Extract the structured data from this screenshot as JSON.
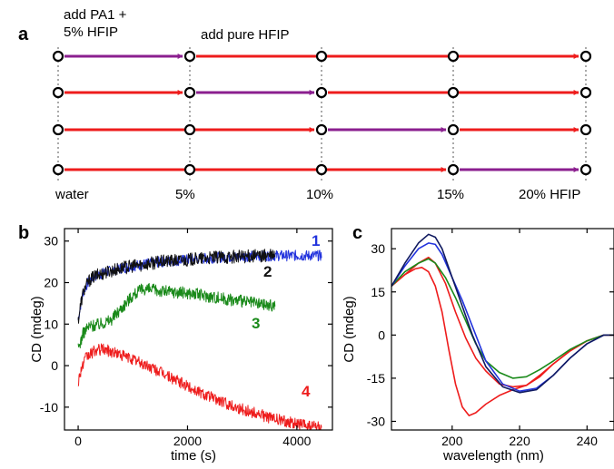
{
  "panels": {
    "a": "a",
    "b": "b",
    "c": "c"
  },
  "colors": {
    "red": "#ee1c1c",
    "purple": "#8b1f8f",
    "black": "#111111",
    "blue": "#2233dd",
    "green": "#1a8a1a",
    "navy": "#101a60"
  },
  "schematic": {
    "annotation_start": [
      "add PA1 +",
      "5% HFIP"
    ],
    "annotation_pure": "add pure HFIP",
    "stage_labels": [
      "water",
      "5%",
      "10%",
      "15%",
      "20% HFIP"
    ],
    "rows": [
      {
        "purple_segment": 0
      },
      {
        "purple_segment": 1
      },
      {
        "purple_segment": 2
      },
      {
        "purple_segment": 3
      }
    ]
  },
  "chart_data": [
    {
      "panel": "b",
      "type": "line",
      "xlabel": "time (s)",
      "ylabel": "CD (mdeg)",
      "xlim": [
        -250,
        4650
      ],
      "ylim": [
        -15.5,
        33
      ],
      "xticks": [
        0,
        2000,
        4000
      ],
      "yticks": [
        -10,
        0,
        10,
        20,
        30
      ],
      "series": [
        {
          "name": "1",
          "color": "#2233dd",
          "noise": 1.3,
          "x": [
            0,
            50,
            100,
            200,
            300,
            500,
            800,
            1000,
            1500,
            2000,
            2500,
            3000,
            3600,
            3800,
            4000,
            4300,
            4450
          ],
          "y": [
            11,
            15,
            18,
            20.5,
            21.5,
            22.5,
            23.5,
            24,
            25,
            25.5,
            26,
            26.3,
            26.5,
            26.5,
            26.5,
            26.5,
            26.5
          ]
        },
        {
          "name": "2",
          "color": "#111111",
          "noise": 1.6,
          "x": [
            0,
            50,
            100,
            200,
            300,
            500,
            800,
            1000,
            1500,
            2000,
            2500,
            3000,
            3600
          ],
          "y": [
            11,
            15,
            18,
            20.5,
            21.5,
            22.5,
            23.5,
            24,
            25,
            25.5,
            26,
            26.3,
            26.5
          ]
        },
        {
          "name": "3",
          "color": "#1a8a1a",
          "noise": 1.5,
          "x": [
            0,
            50,
            100,
            200,
            400,
            600,
            800,
            1000,
            1200,
            1500,
            2000,
            2500,
            3000,
            3500,
            3600
          ],
          "y": [
            4,
            6,
            8,
            9.5,
            10,
            11,
            14,
            17,
            18.5,
            18,
            17.5,
            16.5,
            15.5,
            14.5,
            14.5
          ]
        },
        {
          "name": "4",
          "color": "#ee1c1c",
          "noise": 1.4,
          "x": [
            0,
            50,
            150,
            300,
            450,
            700,
            1000,
            1500,
            2000,
            2500,
            3000,
            3500,
            4000,
            4450
          ],
          "y": [
            -4,
            -1,
            2,
            3.5,
            4,
            3,
            1.5,
            -1.5,
            -5,
            -8,
            -10.5,
            -12.5,
            -14,
            -15
          ]
        }
      ]
    },
    {
      "panel": "c",
      "type": "line",
      "xlabel": "wavelength (nm)",
      "ylabel": "CD (mdeg)",
      "xlim": [
        182,
        248
      ],
      "ylim": [
        -33,
        37
      ],
      "xticks": [
        200,
        220,
        240
      ],
      "yticks": [
        -30,
        -15,
        0,
        15,
        30
      ],
      "series": [
        {
          "color": "#101a60",
          "x": [
            182,
            186,
            190,
            193,
            195,
            197,
            200,
            203,
            206,
            210,
            215,
            220,
            225,
            230,
            235,
            240,
            245,
            248
          ],
          "y": [
            17,
            25,
            32,
            35,
            34,
            30,
            20,
            10,
            0,
            -11,
            -18,
            -20,
            -19,
            -14,
            -8,
            -3,
            0,
            0
          ]
        },
        {
          "color": "#2233dd",
          "x": [
            182,
            186,
            190,
            193,
            195,
            197,
            200,
            203,
            206,
            210,
            215,
            220,
            225,
            230,
            235,
            240,
            245,
            248
          ],
          "y": [
            17,
            24,
            30,
            32,
            31.5,
            28,
            20,
            12,
            3,
            -9,
            -17,
            -19.5,
            -18.5,
            -14,
            -8,
            -3,
            0,
            0
          ]
        },
        {
          "color": "#1a8a1a",
          "x": [
            182,
            186,
            190,
            193,
            195,
            198,
            201,
            204,
            207,
            210,
            214,
            218,
            222,
            226,
            230,
            235,
            240,
            245,
            248
          ],
          "y": [
            17,
            22,
            25,
            26.5,
            25,
            20,
            13,
            5,
            -3,
            -9,
            -13,
            -15,
            -14.5,
            -12,
            -9,
            -5,
            -2,
            0,
            0
          ]
        },
        {
          "color": "#ee1c1c",
          "x": [
            182,
            186,
            190,
            193,
            195,
            198,
            201,
            204,
            207,
            210,
            214,
            218,
            222,
            226,
            230,
            235,
            240,
            245,
            248
          ],
          "y": [
            17,
            21,
            25,
            27,
            25,
            18,
            8,
            -1,
            -8,
            -12.5,
            -17,
            -18,
            -17.5,
            -14.5,
            -10,
            -5.5,
            -2,
            0,
            0
          ]
        },
        {
          "color": "#ee1c1c",
          "x": [
            182,
            186,
            189,
            191,
            193,
            195,
            197,
            199,
            201,
            203,
            205,
            207,
            210,
            214,
            218,
            222,
            226,
            230,
            235,
            240,
            245,
            248
          ],
          "y": [
            17,
            21,
            23,
            23.5,
            22,
            17,
            8,
            -5,
            -17,
            -25,
            -28,
            -27,
            -24,
            -21,
            -19,
            -17.5,
            -14,
            -10,
            -5.5,
            -2,
            0,
            0
          ]
        }
      ]
    }
  ],
  "curve_labels_b": [
    {
      "text": "1",
      "color": "#2233dd"
    },
    {
      "text": "2",
      "color": "#111111"
    },
    {
      "text": "3",
      "color": "#1a8a1a"
    },
    {
      "text": "4",
      "color": "#ee1c1c"
    }
  ]
}
